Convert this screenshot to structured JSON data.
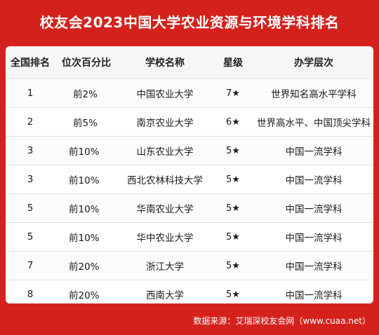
{
  "title": "校友会2023中国大学农业资源与环境学科排名",
  "headers": [
    "全国排名",
    "位次百分比",
    "学校名称",
    "星级",
    "办学层次"
  ],
  "rows": [
    {
      "rank": "1",
      "pct": "前2%",
      "school": "中国农业大学",
      "star": "7★",
      "level": "世界知名高水平学科"
    },
    {
      "rank": "2",
      "pct": "前5%",
      "school": "南京农业大学",
      "star": "6★",
      "level": "世界高水平、中国顶尖学科"
    },
    {
      "rank": "3",
      "pct": "前10%",
      "school": "山东农业大学",
      "star": "5★",
      "level": "中国一流学科"
    },
    {
      "rank": "3",
      "pct": "前10%",
      "school": "西北农林科技大学",
      "star": "5★",
      "level": "中国一流学科"
    },
    {
      "rank": "5",
      "pct": "前10%",
      "school": "华南农业大学",
      "star": "5★",
      "level": "中国一流学科"
    },
    {
      "rank": "5",
      "pct": "前10%",
      "school": "华中农业大学",
      "star": "5★",
      "level": "中国一流学科"
    },
    {
      "rank": "7",
      "pct": "前20%",
      "school": "浙江大学",
      "star": "5★",
      "level": "中国一流学科"
    },
    {
      "rank": "8",
      "pct": "前20%",
      "school": "西南大学",
      "star": "5★",
      "level": "中国一流学科"
    }
  ],
  "source": "数据来源：艾瑞深校友会网（www.cuaa.net）"
}
